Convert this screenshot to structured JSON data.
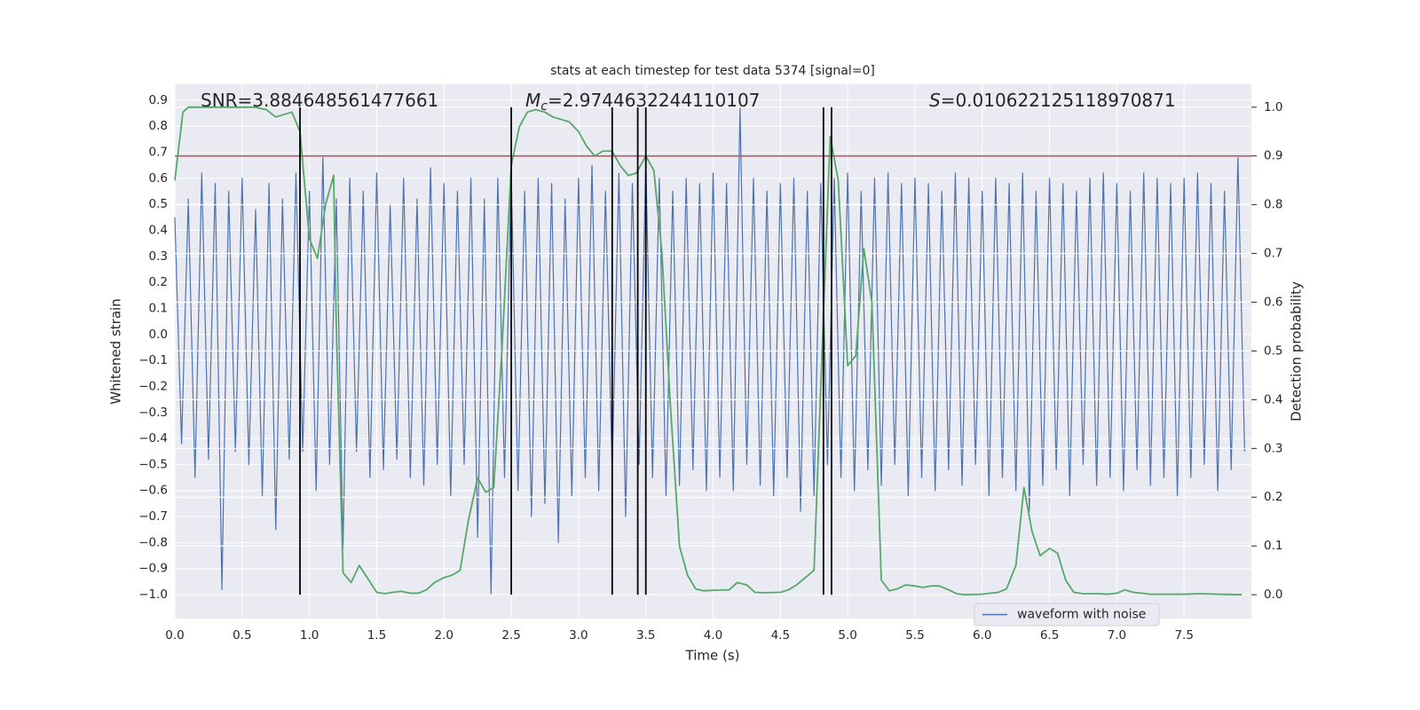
{
  "chart_data": {
    "type": "line",
    "title": "stats at each timestep for test data 5374 [signal=0]",
    "xlabel": "Time (s)",
    "ylabel": "Whitened strain",
    "y2label": "Detection probability",
    "xlim": [
      0,
      8.0
    ],
    "ylim": [
      -1.092,
      0.961
    ],
    "y2lim": [
      -0.049,
      1.047
    ],
    "xticks": [
      {
        "value": 0,
        "label": "0.0"
      },
      0.5,
      {
        "value": 1,
        "label": "1.0"
      },
      1.5,
      {
        "value": 2,
        "label": "2.0"
      },
      2.5,
      {
        "value": 3,
        "label": "3.0"
      },
      3.5,
      {
        "value": 4,
        "label": "4.0"
      },
      4.5,
      {
        "value": 5,
        "label": "5.0"
      },
      5.5,
      {
        "value": 6,
        "label": "6.0"
      },
      6.5,
      {
        "value": 7,
        "label": "7.0"
      },
      7.5
    ],
    "yticks": [
      {
        "value": -1,
        "label": "−1.0"
      },
      {
        "value": -0.9,
        "label": "−0.9"
      },
      {
        "value": -0.8,
        "label": "−0.8"
      },
      {
        "value": -0.7,
        "label": "−0.7"
      },
      {
        "value": -0.6,
        "label": "−0.6"
      },
      {
        "value": -0.5,
        "label": "−0.5"
      },
      {
        "value": -0.4,
        "label": "−0.4"
      },
      {
        "value": -0.3,
        "label": "−0.3"
      },
      {
        "value": -0.2,
        "label": "−0.2"
      },
      {
        "value": -0.1,
        "label": "−0.1"
      },
      {
        "value": 0,
        "label": "0.0"
      },
      0.1,
      0.2,
      0.3,
      0.4,
      0.5,
      0.6,
      0.7,
      0.8,
      0.9
    ],
    "y2ticks": [
      {
        "value": 0,
        "label": "0.0"
      },
      0.1,
      0.2,
      0.3,
      0.4,
      0.5,
      0.6,
      0.7,
      0.8,
      0.9,
      {
        "value": 1,
        "label": "1.0"
      }
    ],
    "grid": true,
    "legend": "lower right",
    "annotations": [
      {
        "text": "SNR=3.884648561477661"
      },
      {
        "symbol": "M",
        "subscript": "c",
        "text": "=2.9744632244110107"
      },
      {
        "symbol": "S",
        "text": "=0.010622125118970871"
      }
    ],
    "threshold": {
      "value": 0.9,
      "axis": "y2",
      "color": "#c44e52"
    },
    "vlines": {
      "x": [
        0.93,
        2.5,
        3.25,
        3.44,
        3.5,
        4.82,
        4.88
      ],
      "ymin": 0,
      "ymax": 1,
      "axis": "y2",
      "color": "#000000"
    },
    "series": [
      {
        "name": "waveform with noise",
        "color": "#4c72b0",
        "x": [
          0,
          0.05,
          0.1,
          0.15,
          0.2,
          0.25,
          0.3,
          0.35,
          0.4,
          0.45,
          0.5,
          0.55,
          0.6,
          0.65,
          0.7,
          0.75,
          0.8,
          0.85,
          0.9,
          0.95,
          1,
          1.05,
          1.1,
          1.15,
          1.2,
          1.25,
          1.3,
          1.35,
          1.4,
          1.45,
          1.5,
          1.55,
          1.6,
          1.65,
          1.7,
          1.75,
          1.8,
          1.85,
          1.9,
          1.95,
          2,
          2.05,
          2.1,
          2.15,
          2.2,
          2.25,
          2.3,
          2.35,
          2.4,
          2.45,
          2.5,
          2.55,
          2.6,
          2.65,
          2.7,
          2.75,
          2.8,
          2.85,
          2.9,
          2.95,
          3,
          3.05,
          3.1,
          3.15,
          3.2,
          3.25,
          3.3,
          3.35,
          3.4,
          3.45,
          3.5,
          3.55,
          3.6,
          3.65,
          3.7,
          3.75,
          3.8,
          3.85,
          3.9,
          3.95,
          4,
          4.05,
          4.1,
          4.15,
          4.2,
          4.25,
          4.3,
          4.35,
          4.4,
          4.45,
          4.5,
          4.55,
          4.6,
          4.65,
          4.7,
          4.75,
          4.8,
          4.85,
          4.9,
          4.95,
          5,
          5.05,
          5.1,
          5.15,
          5.2,
          5.25,
          5.3,
          5.35,
          5.4,
          5.45,
          5.5,
          5.55,
          5.6,
          5.65,
          5.7,
          5.75,
          5.8,
          5.85,
          5.9,
          5.95,
          6,
          6.05,
          6.1,
          6.15,
          6.2,
          6.25,
          6.3,
          6.35,
          6.4,
          6.45,
          6.5,
          6.55,
          6.6,
          6.65,
          6.7,
          6.75,
          6.8,
          6.85,
          6.9,
          6.95,
          7,
          7.05,
          7.1,
          7.15,
          7.2,
          7.25,
          7.3,
          7.35,
          7.4,
          7.45,
          7.5,
          7.55,
          7.6,
          7.65,
          7.7,
          7.75,
          7.8,
          7.85,
          7.9,
          7.95
        ],
        "values": [
          0.45,
          -0.42,
          0.52,
          -0.55,
          0.62,
          -0.48,
          0.58,
          -0.98,
          0.55,
          -0.45,
          0.6,
          -0.5,
          0.48,
          -0.62,
          0.58,
          -0.75,
          0.52,
          -0.48,
          0.62,
          -0.45,
          0.55,
          -0.6,
          0.68,
          -0.5,
          0.52,
          -0.82,
          0.6,
          -0.45,
          0.55,
          -0.55,
          0.62,
          -0.52,
          0.5,
          -0.48,
          0.6,
          -0.55,
          0.52,
          -0.58,
          0.64,
          -0.5,
          0.58,
          -0.62,
          0.55,
          -0.5,
          0.6,
          -0.78,
          0.52,
          -1.0,
          0.6,
          -0.55,
          0.62,
          -0.6,
          0.55,
          -0.7,
          0.6,
          -0.65,
          0.58,
          -0.8,
          0.52,
          -0.62,
          0.6,
          -0.55,
          0.65,
          -0.6,
          0.55,
          -0.52,
          0.62,
          -0.7,
          0.58,
          -0.5,
          0.66,
          -0.55,
          0.6,
          -0.62,
          0.55,
          -0.58,
          0.6,
          -0.52,
          0.58,
          -0.6,
          0.62,
          -0.55,
          0.58,
          -0.6,
          0.87,
          -0.5,
          0.6,
          -0.58,
          0.55,
          -0.62,
          0.58,
          -0.55,
          0.6,
          -0.68,
          0.55,
          -0.62,
          0.58,
          -0.5,
          0.6,
          -0.55,
          0.62,
          -0.6,
          0.55,
          -0.52,
          0.6,
          -0.58,
          0.62,
          -0.5,
          0.58,
          -0.62,
          0.6,
          -0.55,
          0.58,
          -0.6,
          0.55,
          -0.52,
          0.62,
          -0.58,
          0.6,
          -0.5,
          0.55,
          -0.62,
          0.6,
          -0.55,
          0.58,
          -0.6,
          0.62,
          -0.68,
          0.55,
          -0.58,
          0.6,
          -0.52,
          0.58,
          -0.62,
          0.55,
          -0.5,
          0.6,
          -0.58,
          0.62,
          -0.55,
          0.58,
          -0.6,
          0.55,
          -0.52,
          0.62,
          -0.58,
          0.6,
          -0.55,
          0.58,
          -0.62,
          0.6,
          -0.55,
          0.62,
          -0.5,
          0.58,
          -0.6,
          0.55,
          -0.52,
          0.68,
          -0.45
        ]
      },
      {
        "color": "#55a868",
        "axis": "y2",
        "x": [
          0,
          0.06,
          0.1,
          0.5,
          0.6,
          0.68,
          0.75,
          0.87,
          0.93,
          1.0,
          1.06,
          1.12,
          1.18,
          1.2,
          1.25,
          1.31,
          1.37,
          1.43,
          1.5,
          1.56,
          1.62,
          1.68,
          1.75,
          1.81,
          1.87,
          1.93,
          2.0,
          2.06,
          2.12,
          2.18,
          2.25,
          2.31,
          2.37,
          2.43,
          2.5,
          2.56,
          2.62,
          2.68,
          2.75,
          2.81,
          2.87,
          2.93,
          3.0,
          3.06,
          3.12,
          3.18,
          3.25,
          3.31,
          3.37,
          3.43,
          3.5,
          3.56,
          3.62,
          3.68,
          3.75,
          3.81,
          3.87,
          3.93,
          4.0,
          4.12,
          4.18,
          4.25,
          4.31,
          4.37,
          4.5,
          4.56,
          4.62,
          4.75,
          4.81,
          4.87,
          4.93,
          5.0,
          5.06,
          5.12,
          5.18,
          5.25,
          5.31,
          5.37,
          5.43,
          5.5,
          5.56,
          5.62,
          5.68,
          5.75,
          5.81,
          5.87,
          6.0,
          6.12,
          6.18,
          6.25,
          6.31,
          6.37,
          6.43,
          6.5,
          6.56,
          6.62,
          6.68,
          6.75,
          6.87,
          6.93,
          7.0,
          7.06,
          7.12,
          7.25,
          7.5,
          7.62,
          7.75,
          7.93
        ],
        "values": [
          0.85,
          0.99,
          1.0,
          1.0,
          1.0,
          0.995,
          0.98,
          0.99,
          0.95,
          0.73,
          0.69,
          0.8,
          0.86,
          0.55,
          0.045,
          0.025,
          0.06,
          0.035,
          0.005,
          0.002,
          0.005,
          0.007,
          0.003,
          0.003,
          0.01,
          0.025,
          0.035,
          0.04,
          0.05,
          0.15,
          0.24,
          0.21,
          0.22,
          0.5,
          0.88,
          0.96,
          0.99,
          0.995,
          0.99,
          0.98,
          0.975,
          0.97,
          0.95,
          0.92,
          0.9,
          0.91,
          0.91,
          0.88,
          0.86,
          0.865,
          0.9,
          0.87,
          0.7,
          0.4,
          0.1,
          0.04,
          0.012,
          0.008,
          0.009,
          0.01,
          0.025,
          0.02,
          0.005,
          0.004,
          0.005,
          0.01,
          0.02,
          0.05,
          0.5,
          0.94,
          0.85,
          0.47,
          0.49,
          0.71,
          0.6,
          0.03,
          0.008,
          0.012,
          0.02,
          0.018,
          0.015,
          0.018,
          0.018,
          0.01,
          0.002,
          0.0,
          0.001,
          0.005,
          0.012,
          0.06,
          0.22,
          0.13,
          0.08,
          0.095,
          0.085,
          0.03,
          0.005,
          0.002,
          0.002,
          0.001,
          0.003,
          0.01,
          0.005,
          0.001,
          0.001,
          0.002,
          0.001,
          0.0
        ]
      }
    ]
  }
}
